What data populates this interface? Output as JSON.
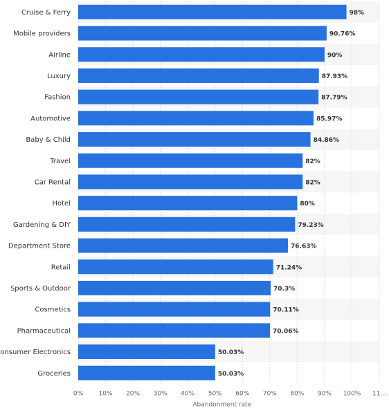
{
  "chart_data": {
    "type": "bar",
    "orientation": "horizontal",
    "xlabel": "Abandonment rate",
    "ylabel": "",
    "xlim": [
      0,
      110
    ],
    "x_tick_labels": [
      "0%",
      "10%",
      "20%",
      "30%",
      "40%",
      "50%",
      "60%",
      "70%",
      "80%",
      "90%",
      "100%",
      "11…"
    ],
    "grid": true,
    "bar_color": "#2872e0",
    "alternating_band_color": "#f6f6f6",
    "categories": [
      "Cruise & Ferry",
      "Mobile providers",
      "Airline",
      "Luxury",
      "Fashion",
      "Automotive",
      "Baby & Child",
      "Travel",
      "Car Rental",
      "Hotel",
      "Gardening & DIY",
      "Department Store",
      "Retail",
      "Sports & Outdoor",
      "Cosmetics",
      "Pharmaceutical",
      "Consumer Electronics",
      "Groceries"
    ],
    "values": [
      98,
      90.76,
      90,
      87.93,
      87.79,
      85.97,
      84.86,
      82,
      82,
      80,
      79.23,
      76.63,
      71.24,
      70.3,
      70.11,
      70.06,
      50.03,
      50.03
    ],
    "value_labels": [
      "98%",
      "90.76%",
      "90%",
      "87.93%",
      "87.79%",
      "85.97%",
      "84.86%",
      "82%",
      "82%",
      "80%",
      "79.23%",
      "76.63%",
      "71.24%",
      "70.3%",
      "70.11%",
      "70.06%",
      "50.03%",
      "50.03%"
    ]
  }
}
